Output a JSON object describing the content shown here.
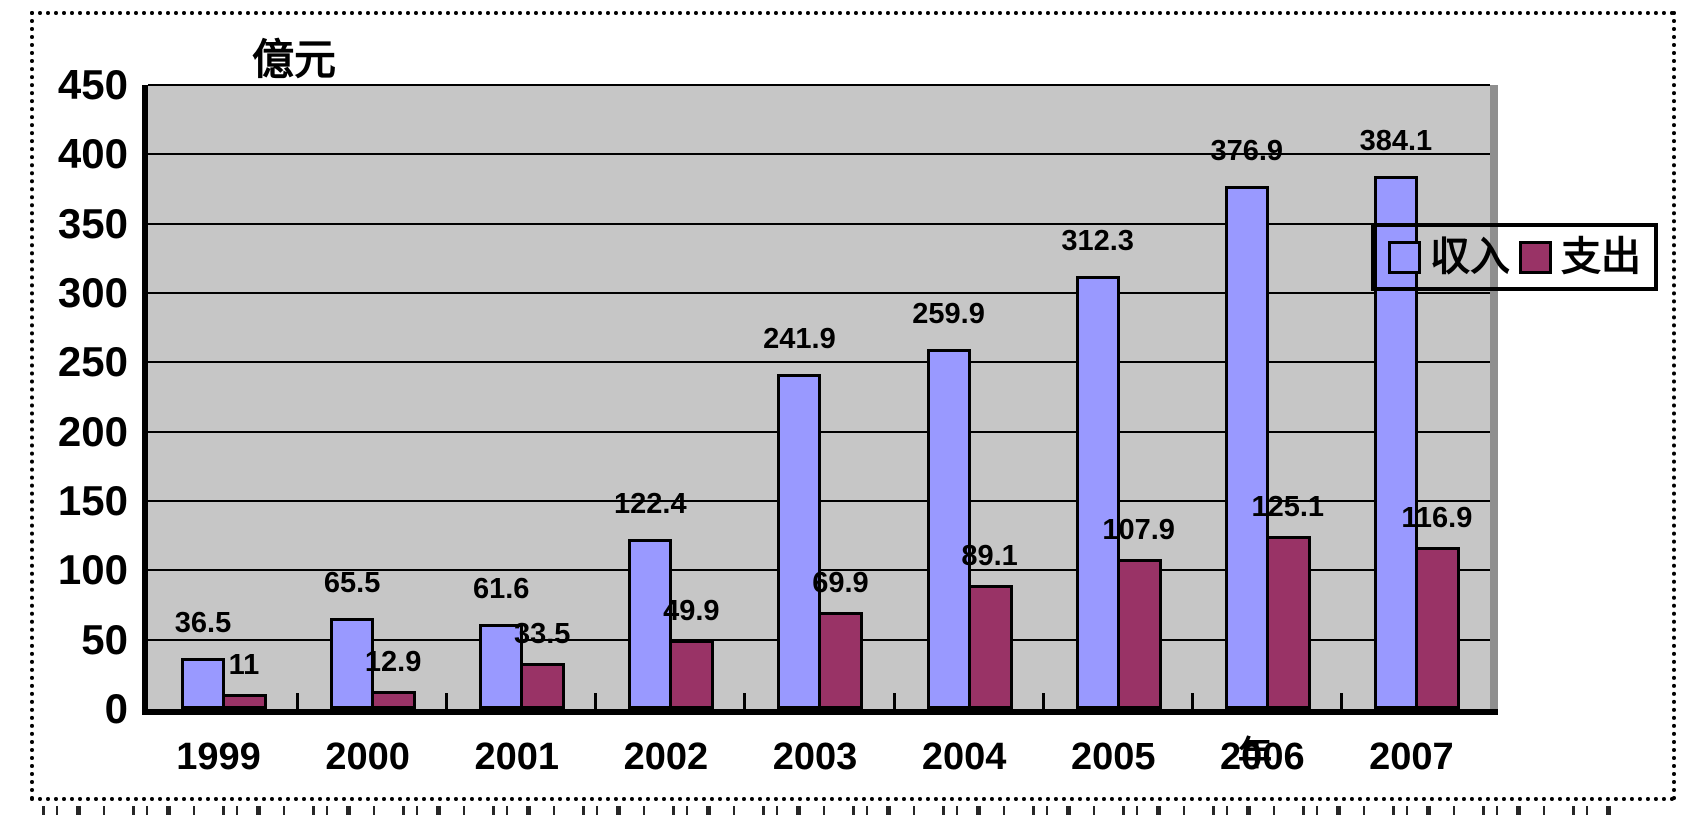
{
  "chart_data": {
    "type": "bar",
    "title": "",
    "unit_label": "億元",
    "axis_suffix_label": "年",
    "categories": [
      "1999",
      "2000",
      "2001",
      "2002",
      "2003",
      "2004",
      "2005",
      "2006",
      "2007"
    ],
    "series": [
      {
        "name": "収入",
        "color": "#9999FF",
        "values": [
          36.5,
          65.5,
          61.6,
          122.4,
          241.9,
          259.9,
          312.3,
          376.9,
          384.1
        ]
      },
      {
        "name": "支出",
        "color": "#993366",
        "values": [
          11,
          12.9,
          33.5,
          49.9,
          69.9,
          89.1,
          107.9,
          125.1,
          116.9
        ]
      }
    ],
    "data_labels_visible": true,
    "ylim": [
      0,
      450
    ],
    "yticks": [
      0,
      50,
      100,
      150,
      200,
      250,
      300,
      350,
      400,
      450
    ],
    "grid": true,
    "legend_position": "right-overlap",
    "colors": {
      "plot_bg": "#C6C6C6",
      "gridline": "#000000",
      "bar_border": "#000000",
      "axis": "#000000",
      "plot_right_border": "#8F8F8F",
      "legend_border": "#000000",
      "label_text": "#000000"
    }
  },
  "legend": {
    "items": [
      {
        "label": "収入",
        "color": "#9999FF"
      },
      {
        "label": "支出",
        "color": "#993366"
      }
    ]
  }
}
